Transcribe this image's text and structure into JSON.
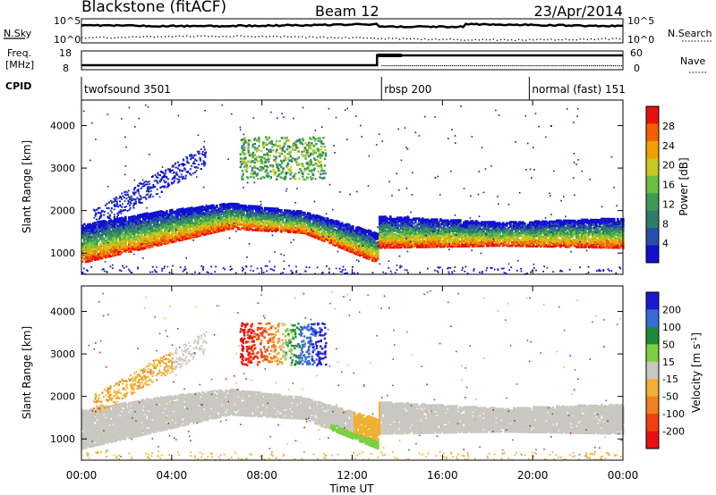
{
  "header": {
    "title": "Blackstone (fitACF)",
    "beam": "Beam 12",
    "date": "23/Apr/2014"
  },
  "strip_labels": {
    "nsky": "N.Sky",
    "nsky_hi": "10^5",
    "nsky_lo": "10^0",
    "nsearch": "N.Search",
    "nsearch_hi": "10^5",
    "nsearch_lo": "10^0",
    "freq_line1": "Freq.",
    "freq_line2": "[MHz]",
    "freq_hi": "18",
    "freq_lo": "8",
    "nave": "Nave",
    "nave_hi": "60",
    "nave_lo": "0",
    "cpid": "CPID"
  },
  "cpid_segments": [
    {
      "label": "twofsound 3501",
      "start_hour": 0.0,
      "end_hour": 13.3
    },
    {
      "label": "rbsp 200",
      "start_hour": 13.3,
      "end_hour": 19.85
    },
    {
      "label": "normal (fast) 151",
      "start_hour": 19.85,
      "end_hour": 24.0
    }
  ],
  "chart_data": [
    {
      "type": "heatmap",
      "parameter": "power",
      "ylabel": "Slant Range [km]",
      "ylim": [
        500,
        4600
      ],
      "yticks": [
        "1000",
        "2000",
        "3000",
        "4000"
      ],
      "xlim_hours": [
        0,
        24
      ],
      "colorbar": {
        "label": "Power [dB]",
        "ticks": [
          "4",
          "8",
          "12",
          "16",
          "20",
          "24",
          "28"
        ],
        "colors": [
          "#1010d0",
          "#2a4fa8",
          "#2f7c68",
          "#3c9a55",
          "#6cc040",
          "#c8c820",
          "#f0a000",
          "#f06000",
          "#e81010"
        ]
      },
      "structures": [
        {
          "name": "main echo band",
          "hours": [
            0,
            13.1
          ],
          "range_km_bottom": [
            800,
            1200,
            1600,
            1500,
            800
          ],
          "range_km_top": [
            1700,
            2000,
            2200,
            2000,
            1500
          ]
        },
        {
          "name": "post-13UT band",
          "hours": [
            13.1,
            24
          ],
          "range_km_bottom": [
            1150,
            1200,
            1150
          ],
          "range_km_top": [
            1900,
            1750,
            1850
          ]
        },
        {
          "name": "high-range cluster",
          "hours": [
            7,
            10.8
          ],
          "range_km": [
            2750,
            3750
          ],
          "power_db": 14
        },
        {
          "name": "rising scatter",
          "hours": [
            0.5,
            5.5
          ],
          "range_km": [
            1800,
            3400
          ],
          "power_db": 6
        }
      ]
    },
    {
      "type": "heatmap",
      "parameter": "velocity",
      "ylabel": "Slant Range [km]",
      "ylim": [
        500,
        4600
      ],
      "yticks": [
        "1000",
        "2000",
        "3000",
        "4000"
      ],
      "xlim_hours": [
        0,
        24
      ],
      "xticks": [
        "00:00",
        "04:00",
        "08:00",
        "12:00",
        "16:00",
        "20:00",
        "00:00"
      ],
      "xlabel": "Time UT",
      "colorbar": {
        "label": "Velocity [m s^-1]",
        "ticks": [
          "200",
          "100",
          "50",
          "15",
          "-15",
          "-50",
          "-100",
          "-200"
        ],
        "colors": [
          "#1a1ad0",
          "#3a6ad8",
          "#1f8a3a",
          "#7cd040",
          "#c8c8c0",
          "#f0b030",
          "#f08020",
          "#f04010",
          "#e81010"
        ]
      },
      "structures": [
        {
          "name": "ground scatter band",
          "hours": [
            0,
            24
          ],
          "range_km": [
            900,
            2200
          ],
          "velocity_ms": 0
        },
        {
          "name": "high-range cluster red-to-blue",
          "hours": [
            7,
            10.8
          ],
          "range_km": [
            2750,
            3750
          ],
          "velocity_ms": [
            -200,
            200
          ]
        },
        {
          "name": "orange rising scatter",
          "hours": [
            0.5,
            4.0
          ],
          "range_km": [
            1600,
            2900
          ],
          "velocity_ms": -60
        }
      ]
    }
  ]
}
